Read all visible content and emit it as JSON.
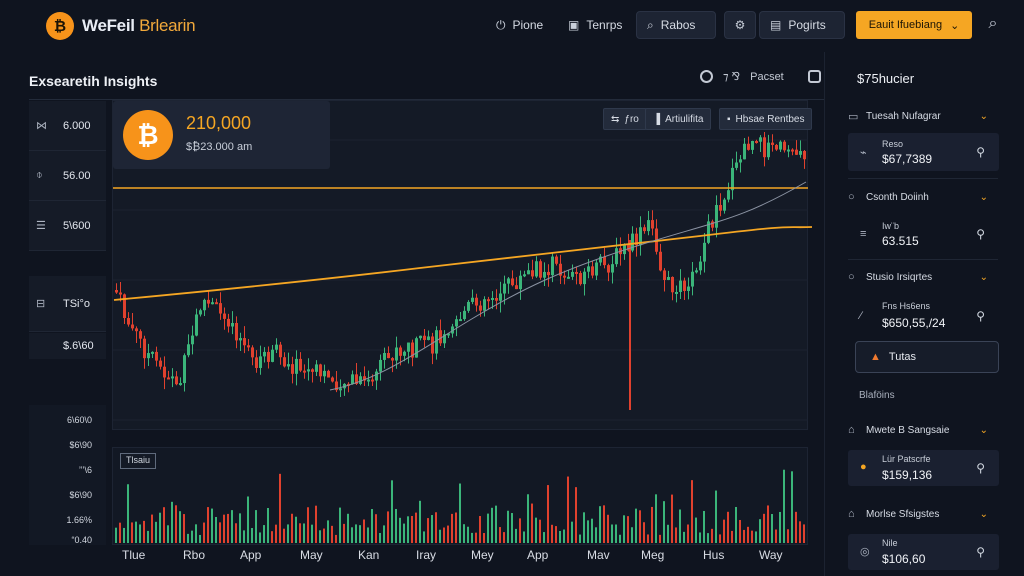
{
  "header": {
    "brand_part1": "WeFeil",
    "brand_part2": "Brlearin",
    "nav": [
      {
        "icon": "power-icon",
        "label": "Pione"
      },
      {
        "icon": "briefcase-icon",
        "label": "Tenrps"
      },
      {
        "icon": "search-icon",
        "label": "Rabos"
      },
      {
        "icon": "gear-icon",
        "label": ""
      },
      {
        "icon": "stack-icon",
        "label": "Pogirts"
      }
    ],
    "cta_label": "Eauit Ifuebiang",
    "cta_chevron": "⌄"
  },
  "page": {
    "title": "Exsearetih Insights",
    "tool_label": "Pacset",
    "tool_mid": "⁊ ⅋"
  },
  "left_stats": [
    {
      "icon": "⋈",
      "value": "6.000"
    },
    {
      "icon": "⌽",
      "value": "56.00"
    },
    {
      "icon": "☰",
      "value": "5\\600"
    },
    {
      "icon": "⊟",
      "value": "TSi°o"
    },
    {
      "icon": "",
      "value": "$.6\\60"
    }
  ],
  "volume_axis": [
    "6\\60\\0",
    "$6\\90",
    "’’’\\6",
    "$6\\90",
    "1.66%",
    "“0.40"
  ],
  "price_card": {
    "symbol": "₿",
    "price": "210,000",
    "sub": "$₿23.000 am"
  },
  "chips": [
    {
      "icon": "⇆",
      "label": "ƒro"
    },
    {
      "icon": "▐",
      "label": "Artiulifita"
    },
    {
      "icon": "▪",
      "label": "Hbsae Rentbes"
    }
  ],
  "volume_tag": "Tlsaiu",
  "x_labels": [
    "Tlue",
    "Rbo",
    "App",
    "May",
    "Kan",
    "Iray",
    "Mey",
    "App",
    "Mav",
    "Meg",
    "Hus",
    "Way"
  ],
  "right_panel": {
    "title": "$75hucier",
    "items": [
      {
        "type": "row",
        "icon": "▭",
        "label": "Tuesah Nufagrar"
      },
      {
        "type": "card",
        "icon": "⌁",
        "label": "Reso",
        "value": "$67,7389"
      },
      {
        "type": "row",
        "icon": "○",
        "label": "Csonth Doiinh"
      },
      {
        "type": "card",
        "icon": "≡",
        "label": "Iw¨b",
        "value": "63.515"
      },
      {
        "type": "row",
        "icon": "○",
        "label": "Stusio Irsiqrtes"
      },
      {
        "type": "card",
        "icon": "∕",
        "label": "Fns Hs6ens",
        "value": "$650,55,/24"
      }
    ],
    "active_label": "Tutas",
    "section": "Blaföins",
    "items2": [
      {
        "type": "row",
        "icon": "⌂",
        "label": "Mwete B Sangsaie"
      },
      {
        "type": "card",
        "icon": "●",
        "label": "Lür Patscrfe",
        "value": "$159,136"
      },
      {
        "type": "row",
        "icon": "⌂",
        "label": "Morlse Sfsigstes"
      },
      {
        "type": "card",
        "icon": "◎",
        "label": "Nile",
        "value": "$106,60"
      }
    ]
  },
  "colors": {
    "accent": "#f5a623",
    "up": "#3bb57a",
    "down": "#e0412e",
    "ma": "#f5a623"
  }
}
